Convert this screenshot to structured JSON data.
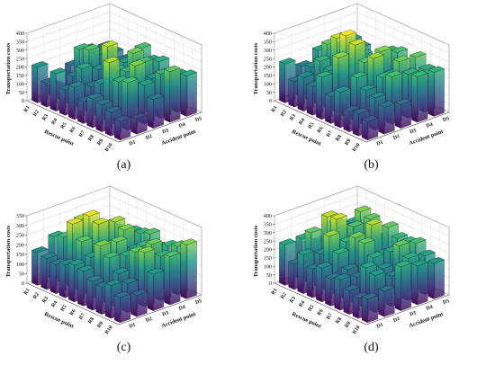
{
  "chart_data": [
    {
      "type": "bar3d",
      "caption": "(a)",
      "zlabel": "Transportation costs",
      "xlabel": "Rescue point",
      "ylabel": "Accident point",
      "x_categories": [
        "R1",
        "R2",
        "R3",
        "R4",
        "R5",
        "R6",
        "R7",
        "R8",
        "R9",
        "R10"
      ],
      "y_categories": [
        "D1",
        "D2",
        "D3",
        "D4",
        "D5"
      ],
      "zlim": [
        0,
        400
      ],
      "zticks": [
        0,
        50,
        100,
        150,
        200,
        250,
        300,
        350,
        400
      ],
      "values": [
        [
          210,
          60,
          150,
          210,
          190
        ],
        [
          140,
          60,
          270,
          200,
          180
        ],
        [
          220,
          170,
          290,
          110,
          160
        ],
        [
          150,
          240,
          200,
          180,
          120
        ],
        [
          190,
          160,
          360,
          230,
          280
        ],
        [
          130,
          200,
          240,
          310,
          230
        ],
        [
          170,
          350,
          260,
          280,
          250
        ],
        [
          160,
          260,
          320,
          210,
          200
        ],
        [
          140,
          280,
          230,
          260,
          220
        ],
        [
          110,
          90,
          170,
          300,
          240
        ]
      ]
    },
    {
      "type": "bar3d",
      "caption": "(b)",
      "zlabel": "Transportation costs",
      "xlabel": "Rescue point",
      "ylabel": "Accident point",
      "x_categories": [
        "R1",
        "R2",
        "R3",
        "R4",
        "R5",
        "R6",
        "R7",
        "R8",
        "R9",
        "R10"
      ],
      "y_categories": [
        "D1",
        "D2",
        "D3",
        "D4",
        "D5"
      ],
      "zlim": [
        0,
        400
      ],
      "zticks": [
        0,
        50,
        100,
        150,
        200,
        250,
        300,
        350,
        400
      ],
      "values": [
        [
          230,
          180,
          240,
          220,
          230
        ],
        [
          150,
          200,
          300,
          220,
          210
        ],
        [
          200,
          260,
          360,
          250,
          160
        ],
        [
          170,
          230,
          400,
          250,
          170
        ],
        [
          250,
          330,
          370,
          180,
          260
        ],
        [
          160,
          140,
          290,
          320,
          280
        ],
        [
          210,
          260,
          340,
          210,
          180
        ],
        [
          120,
          210,
          250,
          310,
          300
        ],
        [
          130,
          190,
          280,
          260,
          250
        ],
        [
          110,
          160,
          140,
          270,
          260
        ]
      ]
    },
    {
      "type": "bar3d",
      "caption": "(c)",
      "zlabel": "Transportation costs",
      "xlabel": "Rescue point",
      "ylabel": "Accident point",
      "x_categories": [
        "R1",
        "R2",
        "R3",
        "R4",
        "R5",
        "R6",
        "R7",
        "R8",
        "R9",
        "R10"
      ],
      "y_categories": [
        "D1",
        "D2",
        "D3",
        "D4",
        "D5"
      ],
      "zlim": [
        0,
        350
      ],
      "zticks": [
        0,
        50,
        100,
        150,
        200,
        250,
        300,
        350
      ],
      "values": [
        [
          170,
          220,
          180,
          200,
          170
        ],
        [
          160,
          240,
          300,
          220,
          190
        ],
        [
          150,
          330,
          340,
          260,
          180
        ],
        [
          170,
          260,
          320,
          300,
          220
        ],
        [
          190,
          200,
          230,
          280,
          230
        ],
        [
          180,
          280,
          270,
          200,
          250
        ],
        [
          150,
          240,
          220,
          240,
          200
        ],
        [
          140,
          180,
          260,
          270,
          230
        ],
        [
          170,
          150,
          280,
          230,
          250
        ],
        [
          130,
          110,
          190,
          250,
          280
        ]
      ]
    },
    {
      "type": "bar3d",
      "caption": "(d)",
      "zlabel": "Transportation costs",
      "xlabel": "Rescue point",
      "ylabel": "Accident point",
      "x_categories": [
        "R1",
        "R2",
        "R3",
        "R4",
        "R5",
        "R6",
        "R7",
        "R8",
        "R9",
        "R10"
      ],
      "y_categories": [
        "D1",
        "D2",
        "D3",
        "D4",
        "D5"
      ],
      "zlim": [
        0,
        400
      ],
      "zticks": [
        0,
        50,
        100,
        150,
        200,
        250,
        300,
        350,
        400
      ],
      "values": [
        [
          240,
          240,
          190,
          260,
          230
        ],
        [
          150,
          300,
          360,
          250,
          320
        ],
        [
          230,
          200,
          370,
          290,
          300
        ],
        [
          170,
          330,
          260,
          200,
          210
        ],
        [
          200,
          250,
          310,
          350,
          300
        ],
        [
          160,
          180,
          300,
          200,
          260
        ],
        [
          180,
          160,
          240,
          240,
          260
        ],
        [
          140,
          240,
          200,
          300,
          280
        ],
        [
          120,
          220,
          180,
          250,
          230
        ],
        [
          140,
          150,
          260,
          230,
          210
        ]
      ]
    }
  ]
}
